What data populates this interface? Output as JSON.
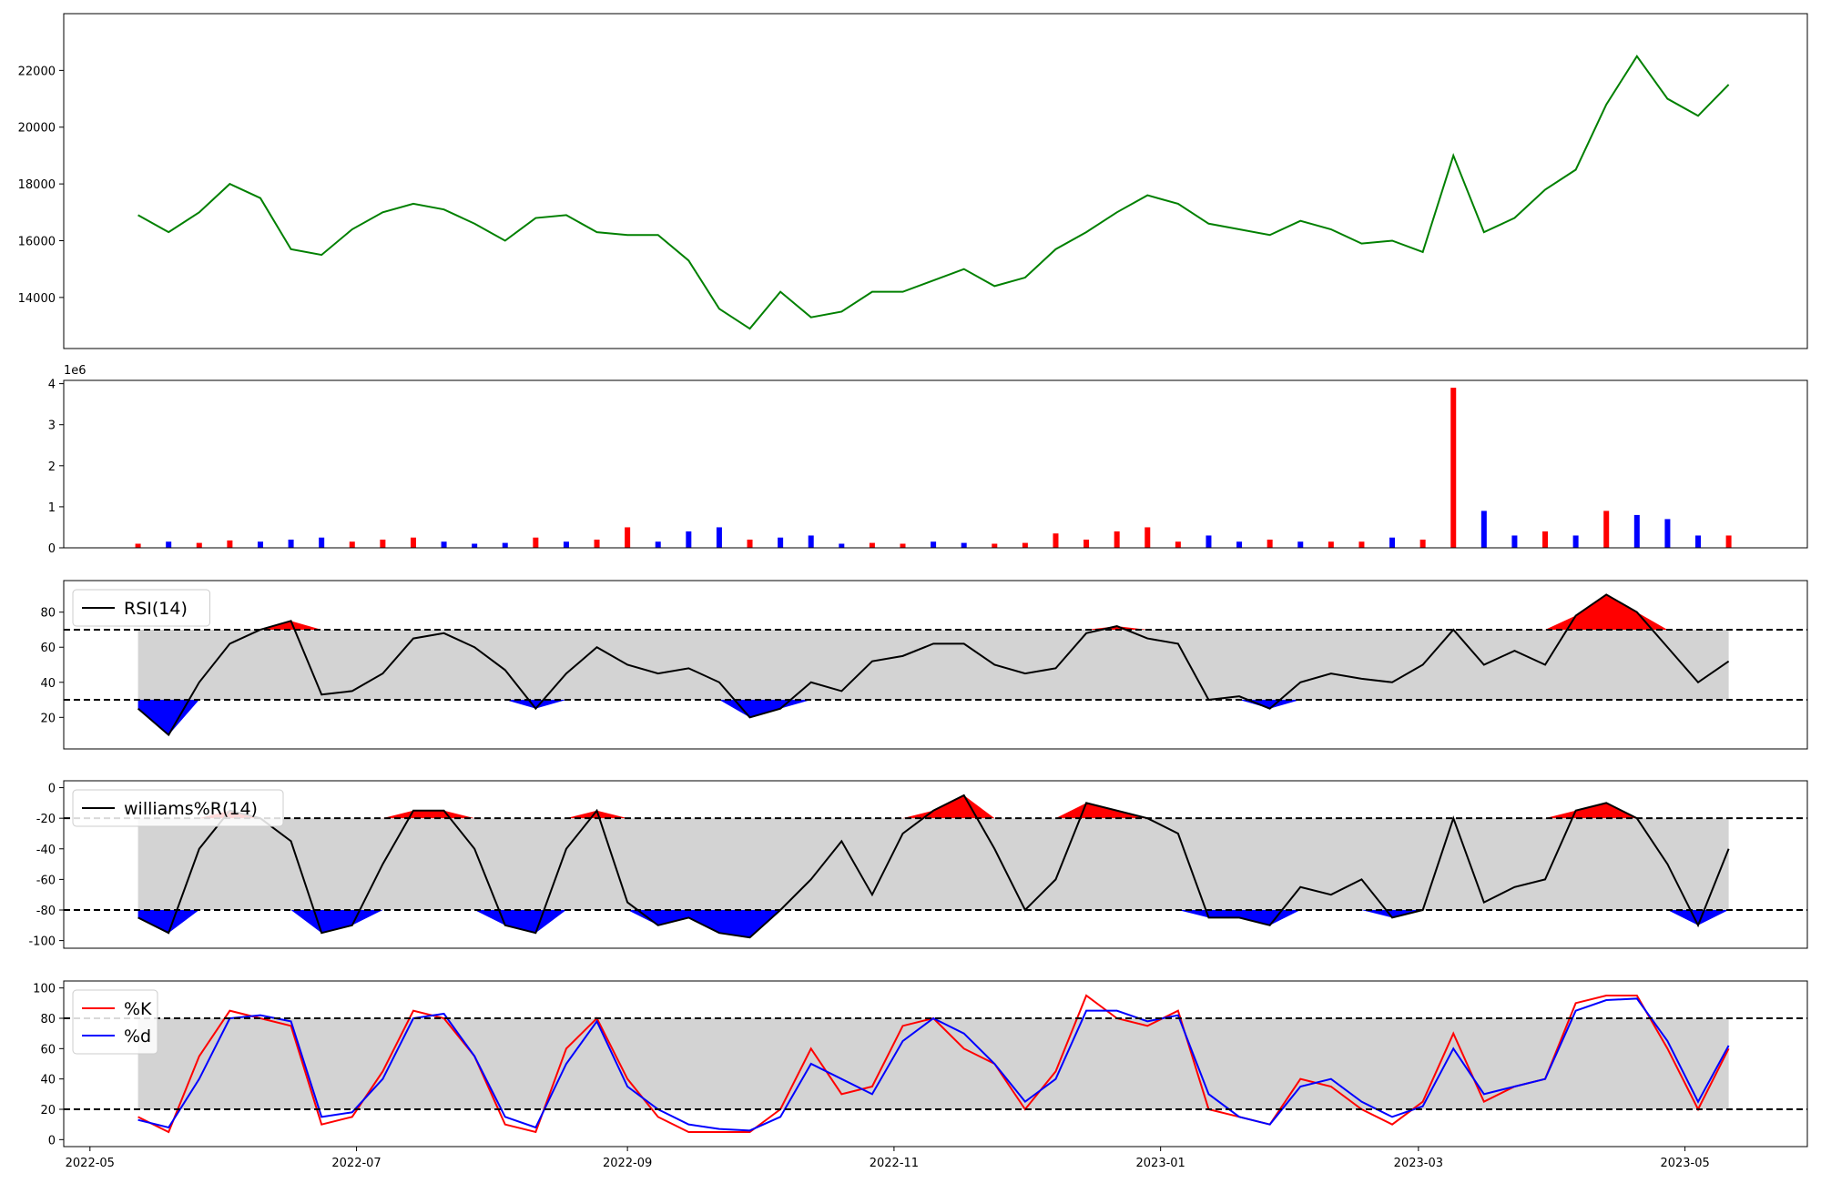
{
  "chart_data": [
    {
      "type": "line",
      "x": [
        "2022-05-12",
        "2022-05-19",
        "2022-05-26",
        "2022-06-02",
        "2022-06-09",
        "2022-06-16",
        "2022-06-23",
        "2022-06-30",
        "2022-07-07",
        "2022-07-14",
        "2022-07-21",
        "2022-07-28",
        "2022-08-04",
        "2022-08-11",
        "2022-08-18",
        "2022-08-25",
        "2022-09-01",
        "2022-09-08",
        "2022-09-15",
        "2022-09-22",
        "2022-09-29",
        "2022-10-06",
        "2022-10-13",
        "2022-10-20",
        "2022-10-27",
        "2022-11-03",
        "2022-11-10",
        "2022-11-17",
        "2022-11-24",
        "2022-12-01",
        "2022-12-08",
        "2022-12-15",
        "2022-12-22",
        "2022-12-29",
        "2023-01-05",
        "2023-01-12",
        "2023-01-19",
        "2023-01-26",
        "2023-02-02",
        "2023-02-09",
        "2023-02-16",
        "2023-02-23",
        "2023-03-02",
        "2023-03-09",
        "2023-03-16",
        "2023-03-23",
        "2023-03-30",
        "2023-04-06",
        "2023-04-13",
        "2023-04-20",
        "2023-04-27",
        "2023-05-04",
        "2023-05-11"
      ],
      "series": [
        {
          "color": "green",
          "values": [
            16900,
            16300,
            17000,
            18000,
            17500,
            15700,
            15500,
            16400,
            17000,
            17300,
            17100,
            16600,
            16000,
            16800,
            16900,
            16300,
            16200,
            16200,
            15300,
            13600,
            12900,
            14200,
            13300,
            13500,
            14200,
            14200,
            14600,
            15000,
            14400,
            14700,
            15700,
            16300,
            17000,
            17600,
            17300,
            16600,
            16400,
            16200,
            16700,
            16400,
            15900,
            16000,
            15600,
            19000,
            16300,
            16800,
            17800,
            18500,
            20800,
            22500,
            21000,
            20400,
            21500
          ]
        }
      ],
      "xlim": [
        "2022-04-25",
        "2023-05-29"
      ],
      "ylim": [
        12200,
        24000
      ],
      "yticks": [
        14000,
        16000,
        18000,
        20000,
        22000
      ]
    },
    {
      "type": "bar",
      "x": [
        "2022-05-12",
        "2022-05-19",
        "2022-05-26",
        "2022-06-02",
        "2022-06-09",
        "2022-06-16",
        "2022-06-23",
        "2022-06-30",
        "2022-07-07",
        "2022-07-14",
        "2022-07-21",
        "2022-07-28",
        "2022-08-04",
        "2022-08-11",
        "2022-08-18",
        "2022-08-25",
        "2022-09-01",
        "2022-09-08",
        "2022-09-15",
        "2022-09-22",
        "2022-09-29",
        "2022-10-06",
        "2022-10-13",
        "2022-10-20",
        "2022-10-27",
        "2022-11-03",
        "2022-11-10",
        "2022-11-17",
        "2022-11-24",
        "2022-12-01",
        "2022-12-08",
        "2022-12-15",
        "2022-12-22",
        "2022-12-29",
        "2023-01-05",
        "2023-01-12",
        "2023-01-19",
        "2023-01-26",
        "2023-02-02",
        "2023-02-09",
        "2023-02-16",
        "2023-02-23",
        "2023-03-02",
        "2023-03-09",
        "2023-03-16",
        "2023-03-23",
        "2023-03-30",
        "2023-04-06",
        "2023-04-13",
        "2023-04-20",
        "2023-04-27",
        "2023-05-04",
        "2023-05-11"
      ],
      "values": [
        100000,
        150000,
        120000,
        180000,
        150000,
        200000,
        250000,
        150000,
        200000,
        250000,
        150000,
        100000,
        120000,
        250000,
        150000,
        200000,
        500000,
        150000,
        400000,
        500000,
        200000,
        250000,
        300000,
        100000,
        120000,
        100000,
        150000,
        120000,
        100000,
        120000,
        350000,
        200000,
        400000,
        500000,
        150000,
        300000,
        150000,
        200000,
        150000,
        150000,
        150000,
        250000,
        200000,
        3900000,
        900000,
        300000,
        400000,
        300000,
        900000,
        800000,
        700000,
        300000,
        300000
      ],
      "colors": [
        "red",
        "blue",
        "red",
        "red",
        "blue",
        "blue",
        "blue",
        "red",
        "red",
        "red",
        "blue",
        "blue",
        "blue",
        "red",
        "blue",
        "red",
        "red",
        "blue",
        "blue",
        "blue",
        "red",
        "blue",
        "blue",
        "blue",
        "red",
        "red",
        "blue",
        "blue",
        "red",
        "red",
        "red",
        "red",
        "red",
        "red",
        "red",
        "blue",
        "blue",
        "red",
        "blue",
        "red",
        "red",
        "blue",
        "red",
        "red",
        "blue",
        "blue",
        "red",
        "blue",
        "red",
        "blue",
        "blue",
        "blue",
        "red"
      ],
      "offset_label": "1e6",
      "xlim": [
        "2022-04-25",
        "2023-05-29"
      ],
      "ylim": [
        0,
        4080000
      ],
      "yticks": [
        0,
        {
          "value": 1000000,
          "label": "1"
        },
        {
          "value": 2000000,
          "label": "2"
        },
        {
          "value": 3000000,
          "label": "3"
        },
        {
          "value": 4000000,
          "label": "4"
        }
      ]
    },
    {
      "type": "line",
      "x": [
        "2022-05-12",
        "2022-05-19",
        "2022-05-26",
        "2022-06-02",
        "2022-06-09",
        "2022-06-16",
        "2022-06-23",
        "2022-06-30",
        "2022-07-07",
        "2022-07-14",
        "2022-07-21",
        "2022-07-28",
        "2022-08-04",
        "2022-08-11",
        "2022-08-18",
        "2022-08-25",
        "2022-09-01",
        "2022-09-08",
        "2022-09-15",
        "2022-09-22",
        "2022-09-29",
        "2022-10-06",
        "2022-10-13",
        "2022-10-20",
        "2022-10-27",
        "2022-11-03",
        "2022-11-10",
        "2022-11-17",
        "2022-11-24",
        "2022-12-01",
        "2022-12-08",
        "2022-12-15",
        "2022-12-22",
        "2022-12-29",
        "2023-01-05",
        "2023-01-12",
        "2023-01-19",
        "2023-01-26",
        "2023-02-02",
        "2023-02-09",
        "2023-02-16",
        "2023-02-23",
        "2023-03-02",
        "2023-03-09",
        "2023-03-16",
        "2023-03-23",
        "2023-03-30",
        "2023-04-06",
        "2023-04-13",
        "2023-04-20",
        "2023-04-27",
        "2023-05-04",
        "2023-05-11"
      ],
      "series": [
        {
          "name": "RSI(14)",
          "color": "black",
          "values": [
            25,
            10,
            40,
            62,
            70,
            75,
            33,
            35,
            45,
            65,
            68,
            60,
            47,
            25,
            45,
            60,
            50,
            45,
            48,
            40,
            20,
            25,
            40,
            35,
            52,
            55,
            62,
            62,
            50,
            45,
            48,
            68,
            72,
            65,
            62,
            30,
            32,
            25,
            40,
            45,
            42,
            40,
            50,
            70,
            50,
            58,
            50,
            78,
            90,
            80,
            60,
            40,
            52
          ]
        }
      ],
      "hlines": [
        30,
        70
      ],
      "band_color": "lightgray",
      "upper_color": "red",
      "lower_color": "blue",
      "legend": "upper left",
      "xlim": [
        "2022-04-25",
        "2023-05-29"
      ],
      "ylim": [
        2,
        98
      ],
      "yticks": [
        20,
        40,
        60,
        80
      ]
    },
    {
      "type": "line",
      "x": [
        "2022-05-12",
        "2022-05-19",
        "2022-05-26",
        "2022-06-02",
        "2022-06-09",
        "2022-06-16",
        "2022-06-23",
        "2022-06-30",
        "2022-07-07",
        "2022-07-14",
        "2022-07-21",
        "2022-07-28",
        "2022-08-04",
        "2022-08-11",
        "2022-08-18",
        "2022-08-25",
        "2022-09-01",
        "2022-09-08",
        "2022-09-15",
        "2022-09-22",
        "2022-09-29",
        "2022-10-06",
        "2022-10-13",
        "2022-10-20",
        "2022-10-27",
        "2022-11-03",
        "2022-11-10",
        "2022-11-17",
        "2022-11-24",
        "2022-12-01",
        "2022-12-08",
        "2022-12-15",
        "2022-12-22",
        "2022-12-29",
        "2023-01-05",
        "2023-01-12",
        "2023-01-19",
        "2023-01-26",
        "2023-02-02",
        "2023-02-09",
        "2023-02-16",
        "2023-02-23",
        "2023-03-02",
        "2023-03-09",
        "2023-03-16",
        "2023-03-23",
        "2023-03-30",
        "2023-04-06",
        "2023-04-13",
        "2023-04-20",
        "2023-04-27",
        "2023-05-04",
        "2023-05-11"
      ],
      "series": [
        {
          "name": "williams%R(14)",
          "color": "black",
          "values": [
            -85,
            -95,
            -40,
            -15,
            -20,
            -35,
            -95,
            -90,
            -50,
            -15,
            -15,
            -40,
            -90,
            -95,
            -40,
            -15,
            -75,
            -90,
            -85,
            -95,
            -98,
            -80,
            -60,
            -35,
            -70,
            -30,
            -15,
            -5,
            -40,
            -80,
            -60,
            -10,
            -15,
            -20,
            -30,
            -85,
            -85,
            -90,
            -65,
            -70,
            -60,
            -85,
            -80,
            -20,
            -75,
            -65,
            -60,
            -15,
            -10,
            -20,
            -50,
            -90,
            -40
          ]
        }
      ],
      "hlines": [
        -80,
        -20
      ],
      "band_color": "lightgray",
      "upper_color": "red",
      "lower_color": "blue",
      "legend": "upper left",
      "xlim": [
        "2022-04-25",
        "2023-05-29"
      ],
      "ylim": [
        -105,
        4.5
      ],
      "yticks": [
        -100,
        -80,
        -60,
        -40,
        -20,
        0
      ]
    },
    {
      "type": "line",
      "x": [
        "2022-05-12",
        "2022-05-19",
        "2022-05-26",
        "2022-06-02",
        "2022-06-09",
        "2022-06-16",
        "2022-06-23",
        "2022-06-30",
        "2022-07-07",
        "2022-07-14",
        "2022-07-21",
        "2022-07-28",
        "2022-08-04",
        "2022-08-11",
        "2022-08-18",
        "2022-08-25",
        "2022-09-01",
        "2022-09-08",
        "2022-09-15",
        "2022-09-22",
        "2022-09-29",
        "2022-10-06",
        "2022-10-13",
        "2022-10-20",
        "2022-10-27",
        "2022-11-03",
        "2022-11-10",
        "2022-11-17",
        "2022-11-24",
        "2022-12-01",
        "2022-12-08",
        "2022-12-15",
        "2022-12-22",
        "2022-12-29",
        "2023-01-05",
        "2023-01-12",
        "2023-01-19",
        "2023-01-26",
        "2023-02-02",
        "2023-02-09",
        "2023-02-16",
        "2023-02-23",
        "2023-03-02",
        "2023-03-09",
        "2023-03-16",
        "2023-03-23",
        "2023-03-30",
        "2023-04-06",
        "2023-04-13",
        "2023-04-20",
        "2023-04-27",
        "2023-05-04",
        "2023-05-11"
      ],
      "series": [
        {
          "name": "%K",
          "color": "red",
          "values": [
            15,
            5,
            55,
            85,
            80,
            75,
            10,
            15,
            45,
            85,
            80,
            55,
            10,
            5,
            60,
            80,
            40,
            15,
            5,
            5,
            5,
            20,
            60,
            30,
            35,
            75,
            80,
            60,
            50,
            20,
            45,
            95,
            80,
            75,
            85,
            20,
            15,
            10,
            40,
            35,
            20,
            10,
            25,
            70,
            25,
            35,
            40,
            90,
            95,
            95,
            60,
            20,
            60
          ]
        },
        {
          "name": "%d",
          "color": "blue",
          "values": [
            13,
            8,
            40,
            80,
            82,
            78,
            15,
            18,
            40,
            80,
            83,
            55,
            15,
            8,
            50,
            78,
            35,
            20,
            10,
            7,
            6,
            15,
            50,
            40,
            30,
            65,
            80,
            70,
            50,
            25,
            40,
            85,
            85,
            78,
            82,
            30,
            15,
            10,
            35,
            40,
            25,
            15,
            22,
            60,
            30,
            35,
            40,
            85,
            92,
            93,
            65,
            25,
            62
          ]
        }
      ],
      "hlines": [
        20,
        80
      ],
      "band_color": "lightgray",
      "legend": "upper left",
      "xlim": [
        "2022-04-25",
        "2023-05-29"
      ],
      "ylim": [
        -4.6,
        104.6
      ],
      "yticks": [
        0,
        20,
        40,
        60,
        80,
        100
      ],
      "xticks": [
        "2022-05",
        "2022-07",
        "2022-09",
        "2022-11",
        "2023-01",
        "2023-03",
        "2023-05"
      ]
    }
  ]
}
